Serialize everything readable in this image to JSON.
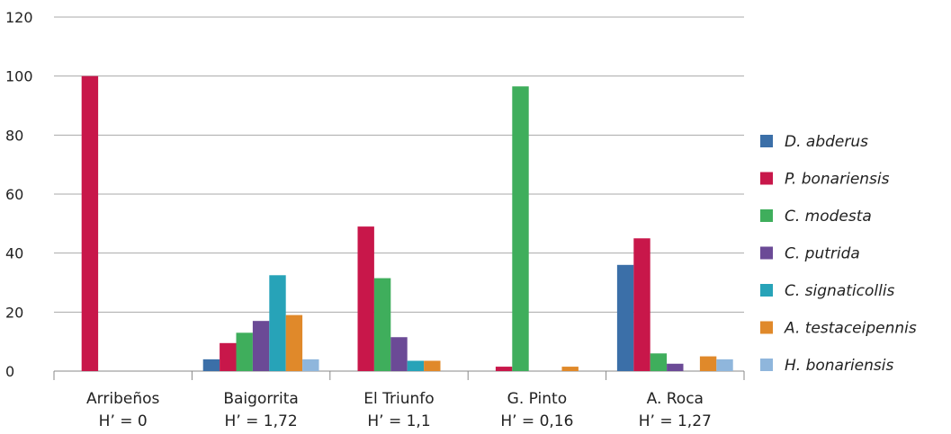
{
  "chart_data": {
    "type": "bar",
    "categories": [
      {
        "name": "Arribeños",
        "subtitle": "H’ = 0"
      },
      {
        "name": "Baigorrita",
        "subtitle": "H’ = 1,72"
      },
      {
        "name": "El Triunfo",
        "subtitle": "H’ = 1,1"
      },
      {
        "name": "G. Pinto",
        "subtitle": "H’ = 0,16"
      },
      {
        "name": "A. Roca",
        "subtitle": "H’ = 1,27"
      }
    ],
    "series": [
      {
        "name": "D. abderus",
        "color": "#3b6fa8",
        "values": [
          0,
          4,
          0,
          0,
          36
        ]
      },
      {
        "name": "P. bonariensis",
        "color": "#c8174a",
        "values": [
          100,
          9.5,
          49,
          1.5,
          45
        ]
      },
      {
        "name": "C. modesta",
        "color": "#3fae5c",
        "values": [
          0,
          13,
          31.5,
          96.5,
          6
        ]
      },
      {
        "name": "C. putrida",
        "color": "#6b4a96",
        "values": [
          0,
          17,
          11.5,
          0,
          2.5
        ]
      },
      {
        "name": "C. signaticollis",
        "color": "#27a3b8",
        "values": [
          0,
          32.5,
          3.5,
          0,
          0
        ]
      },
      {
        "name": "A. testaceipennis",
        "color": "#e0892a",
        "values": [
          0,
          19,
          3.5,
          1.5,
          5
        ]
      },
      {
        "name": "H. bonariensis",
        "color": "#8fb6dc",
        "values": [
          0,
          4,
          0,
          0,
          4
        ]
      }
    ],
    "yticks": [
      0,
      20,
      40,
      60,
      80,
      100,
      120
    ],
    "ylim": [
      0,
      120
    ],
    "grid": true,
    "legend_position": "right",
    "title": "",
    "xlabel": "",
    "ylabel": ""
  }
}
